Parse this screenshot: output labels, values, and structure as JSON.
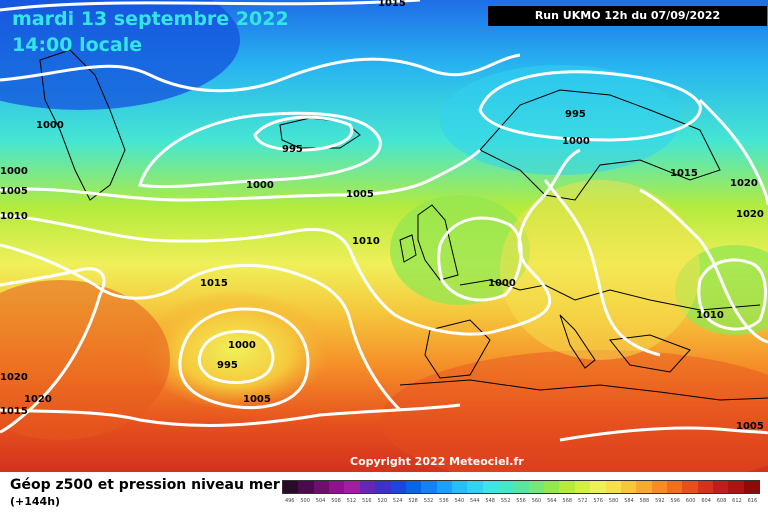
{
  "header": {
    "date_title": "mardi 13 septembre 2022",
    "time_title": "14:00 locale",
    "run_label": "Run UKMO 12h du 07/09/2022"
  },
  "map": {
    "copyright": "Copyright 2022 Meteociel.fr",
    "isobar_labels": [
      "1015",
      "1000",
      "995",
      "1000",
      "995",
      "1000",
      "1000",
      "1005",
      "1005",
      "1000",
      "1005",
      "1010",
      "1015",
      "1015",
      "1020",
      "1020",
      "1010",
      "1000",
      "1010",
      "1000",
      "995",
      "1005",
      "1020",
      "1020",
      "1015",
      "1005"
    ],
    "isobar_color": "#ffffff",
    "coastline_color": "#000000"
  },
  "legend": {
    "title": "Géop z500 et pression niveau mer",
    "subtitle": "(+144h)",
    "scale_values": [
      "496",
      "500",
      "504",
      "508",
      "512",
      "516",
      "520",
      "524",
      "528",
      "532",
      "536",
      "540",
      "544",
      "548",
      "552",
      "556",
      "560",
      "564",
      "568",
      "572",
      "576",
      "580",
      "584",
      "588",
      "592",
      "596",
      "600",
      "604",
      "608",
      "612",
      "616"
    ],
    "scale_colors": [
      "#2a0a2a",
      "#4b0a4b",
      "#6e0f6e",
      "#8c148c",
      "#a01ea0",
      "#6428b4",
      "#3c32c8",
      "#1e46dc",
      "#0a64e6",
      "#1482f0",
      "#1ea0fa",
      "#28bef5",
      "#32d2f0",
      "#3ce6e6",
      "#46e6c8",
      "#5ae6a0",
      "#78e678",
      "#96e650",
      "#b4eb3c",
      "#d2f03c",
      "#eef05a",
      "#f5e150",
      "#f5c83c",
      "#f5aa32",
      "#f58c28",
      "#f06e1e",
      "#e6501e",
      "#d2321e",
      "#be1e1e",
      "#aa1414",
      "#8c0a0a"
    ]
  }
}
